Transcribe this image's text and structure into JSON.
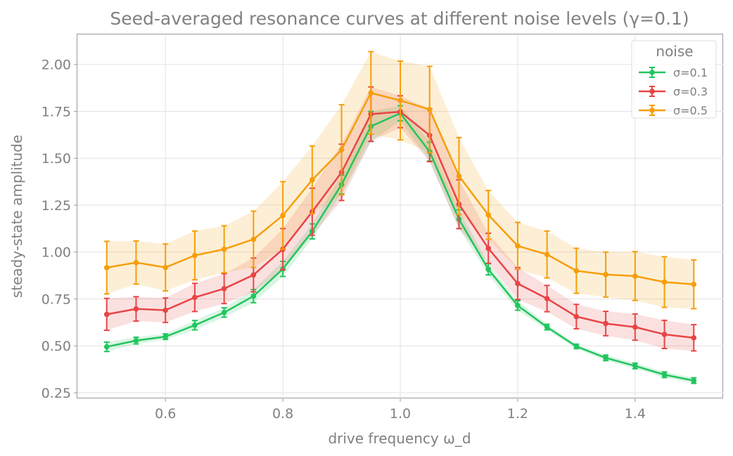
{
  "chart_data": {
    "type": "line",
    "title": "Seed-averaged resonance curves at different noise levels (γ=0.1)",
    "xlabel": "drive frequency ω_d",
    "ylabel": "steady-state amplitude",
    "xlim": [
      0.45,
      1.55
    ],
    "ylim": [
      0.22,
      2.16
    ],
    "xticks": [
      0.6,
      0.8,
      1.0,
      1.2,
      1.4
    ],
    "xtick_labels": [
      "0.6",
      "0.8",
      "1.0",
      "1.2",
      "1.4"
    ],
    "yticks": [
      0.25,
      0.5,
      0.75,
      1.0,
      1.25,
      1.5,
      1.75,
      2.0
    ],
    "ytick_labels": [
      "0.25",
      "0.50",
      "0.75",
      "1.00",
      "1.25",
      "1.50",
      "1.75",
      "2.00"
    ],
    "grid": true,
    "legend": {
      "title": "noise",
      "position": "top-right"
    },
    "x": [
      0.5,
      0.55,
      0.6,
      0.65,
      0.7,
      0.75,
      0.8,
      0.85,
      0.9,
      0.95,
      1.0,
      1.05,
      1.1,
      1.15,
      1.2,
      1.25,
      1.3,
      1.35,
      1.4,
      1.45,
      1.5
    ],
    "series": [
      {
        "name": "σ=0.1",
        "color": "#22c55e",
        "values": [
          0.495,
          0.528,
          0.549,
          0.61,
          0.678,
          0.765,
          0.91,
          1.11,
          1.36,
          1.67,
          1.74,
          1.535,
          1.175,
          0.908,
          0.715,
          0.6,
          0.497,
          0.436,
          0.393,
          0.346,
          0.315
        ],
        "errors": [
          0.025,
          0.018,
          0.015,
          0.025,
          0.025,
          0.035,
          0.04,
          0.04,
          0.05,
          0.08,
          0.04,
          0.05,
          0.05,
          0.03,
          0.025,
          0.015,
          0.012,
          0.015,
          0.015,
          0.015,
          0.015
        ]
      },
      {
        "name": "σ=0.3",
        "color": "#e84545",
        "values": [
          0.668,
          0.697,
          0.69,
          0.758,
          0.805,
          0.878,
          1.015,
          1.215,
          1.425,
          1.735,
          1.748,
          1.622,
          1.255,
          1.02,
          0.832,
          0.752,
          0.656,
          0.619,
          0.6,
          0.561,
          0.543
        ],
        "errors": [
          0.085,
          0.065,
          0.065,
          0.075,
          0.08,
          0.09,
          0.11,
          0.125,
          0.15,
          0.145,
          0.085,
          0.14,
          0.13,
          0.08,
          0.085,
          0.07,
          0.065,
          0.065,
          0.07,
          0.075,
          0.07
        ]
      },
      {
        "name": "σ=0.5",
        "color": "#f59e0b",
        "values": [
          0.917,
          0.944,
          0.918,
          0.982,
          1.015,
          1.068,
          1.195,
          1.385,
          1.545,
          1.848,
          1.808,
          1.76,
          1.405,
          1.198,
          1.033,
          0.987,
          0.9,
          0.88,
          0.872,
          0.84,
          0.828
        ],
        "errors": [
          0.14,
          0.115,
          0.125,
          0.13,
          0.125,
          0.15,
          0.18,
          0.18,
          0.24,
          0.22,
          0.21,
          0.23,
          0.205,
          0.13,
          0.125,
          0.125,
          0.12,
          0.12,
          0.13,
          0.135,
          0.13
        ]
      }
    ]
  }
}
